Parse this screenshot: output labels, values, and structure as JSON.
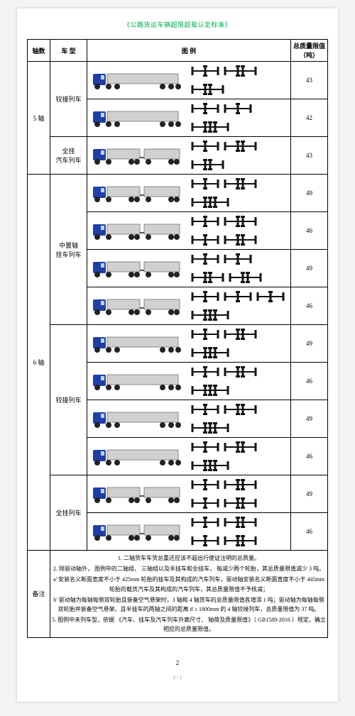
{
  "title": "《公路货运车辆超限超载认定标准》",
  "headers": {
    "axles": "轴数",
    "type": "车 型",
    "illus": "图 例",
    "mass": "总质量限值\n（吨）"
  },
  "colors": {
    "cab": "#1f3fa6",
    "trailer": "#d0d0d0",
    "wheel": "#222222",
    "axle": "#111111"
  },
  "groups": [
    {
      "axle_label": "5 轴",
      "types": [
        {
          "label": "铰接列车",
          "rows": [
            {
              "axle_groups": [
                1,
                2,
                2
              ],
              "trailer_split": false,
              "mass": "43"
            },
            {
              "axle_groups": [
                1,
                1,
                3
              ],
              "trailer_split": false,
              "mass": "42"
            }
          ]
        },
        {
          "label": "全挂\n汽车列车",
          "rows": [
            {
              "axle_groups": [
                1,
                2,
                2
              ],
              "trailer_split": true,
              "mass": "43"
            }
          ]
        }
      ]
    },
    {
      "axle_label": "6 轴",
      "types": [
        {
          "label": "中置轴\n挂车列车",
          "rows": [
            {
              "axle_groups": [
                1,
                2,
                3
              ],
              "trailer_split": true,
              "mass": "49"
            },
            {
              "axle_groups": [
                1,
                2,
                1,
                2
              ],
              "trailer_split": true,
              "mass": "46"
            },
            {
              "axle_groups": [
                1,
                1,
                2,
                2
              ],
              "trailer_split": true,
              "mass": "49"
            },
            {
              "axle_groups": [
                1,
                1,
                1,
                3
              ],
              "trailer_split": true,
              "mass": "46"
            }
          ]
        },
        {
          "label": "铰接列车",
          "rows": [
            {
              "axle_groups": [
                1,
                2,
                3
              ],
              "trailer_split": false,
              "mass": "49"
            },
            {
              "axle_groups": [
                1,
                2,
                3
              ],
              "trailer_split": false,
              "mass": "46"
            },
            {
              "axle_groups": [
                1,
                2,
                3
              ],
              "trailer_split": false,
              "mass": "49"
            },
            {
              "axle_groups": [
                1,
                2,
                3
              ],
              "trailer_split": false,
              "mass": "46"
            }
          ]
        },
        {
          "label": "全挂列车",
          "rows": [
            {
              "axle_groups": [
                1,
                2,
                1,
                2
              ],
              "trailer_split": true,
              "mass": "49"
            },
            {
              "axle_groups": [
                1,
                2,
                1,
                2
              ],
              "trailer_split": true,
              "mass": "46"
            }
          ]
        }
      ]
    }
  ],
  "footnote_label": "备注",
  "footnotes": [
    "1.  二轴货车车货总重还应该不超出行使证注明的总质量。",
    "2.  除驱动轴外，  图例中的二轴组、  三轴组以及半挂车和全挂车，  每减少两个轮胎，其总质量限值减少  3 吨。",
    "a'  安装名义断面宽度不小于 425mm  轮胎的挂车及其构成的汽车列车，驱动轴安装名义断面宽度不小于  445mm 轮胎的载货汽车及其构成的汽车列车，其总质量限值不予核减；",
    "b'  驱动轴为每轴每侧双轮胎且装备空气悬架时，3  轴和 4 轴货车的总质量限值各增添  1 吨；驱动轴为每轴每侧双轮胎并装备空气悬架、且半挂车的两轴之间的距离  d ≥ 1800mm 的 4 轴铰接列车，总质量限值为 37 吨。",
    "5.  图例中未列车型，依据  《汽车、挂车及汽车列车外廓尺寸、  轴荷及质量限值》（ GB1589-2016 ）规定，确立相应的总质量限值。"
  ],
  "page_number": "2",
  "page_index": "2 / 2"
}
